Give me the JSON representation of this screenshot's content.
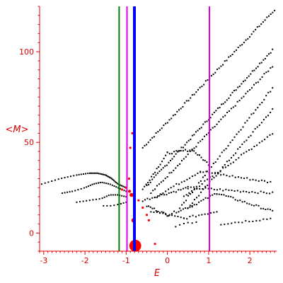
{
  "chart_data": {
    "type": "scatter",
    "title": "",
    "xlabel": "E",
    "ylabel": "<M>",
    "xlim": [
      -3.1,
      2.65
    ],
    "ylim": [
      -10,
      125
    ],
    "xticks": [
      -3,
      -2,
      -1,
      0,
      1,
      2
    ],
    "xtick_labels": [
      "-3",
      "-2",
      "-1",
      "0",
      "1",
      "2"
    ],
    "yticks": [
      0,
      50,
      100
    ],
    "ytick_labels": [
      "0",
      "50",
      "100"
    ],
    "grid": false,
    "colors": {
      "axes": "#e00000",
      "points": "#000000",
      "highlight": "#ff0000",
      "line_green": "#008000",
      "line_magenta": "#e000e0",
      "line_blue": "#0000ff"
    },
    "vertical_lines": [
      {
        "x": -1.17,
        "color": "#008000"
      },
      {
        "x": -0.98,
        "color": "#e000e0"
      },
      {
        "x": -0.8,
        "color": "#0000ff"
      },
      {
        "x": 1.02,
        "color": "#e000e0"
      }
    ],
    "series": [
      {
        "color": "#000000",
        "segments": [
          {
            "x0": -0.6,
            "y0": 47,
            "x1": 2.6,
            "y1": 123,
            "n": 70
          },
          {
            "x0": -0.5,
            "y0": 26,
            "x1": 2.55,
            "y1": 101,
            "n": 70
          },
          {
            "x0": -0.4,
            "y0": 22,
            "x1": 2.55,
            "y1": 92,
            "n": 60
          },
          {
            "x0": 0.3,
            "y0": 14,
            "x1": 2.55,
            "y1": 80,
            "n": 45
          },
          {
            "x0": 0.5,
            "y0": 14,
            "x1": 2.55,
            "y1": 68,
            "n": 40
          },
          {
            "x0": 0.4,
            "y0": 20,
            "x1": 2.55,
            "y1": 55,
            "n": 35
          },
          {
            "x0": -0.6,
            "y0": 24,
            "x1": 0.0,
            "y1": 44,
            "n": 15
          },
          {
            "x0": 0.0,
            "y0": 44,
            "x1": 0.6,
            "y1": 46,
            "n": 12
          },
          {
            "x0": 0.6,
            "y0": 46,
            "x1": 1.0,
            "y1": 38,
            "n": 10
          },
          {
            "x0": -0.3,
            "y0": 20,
            "x1": 0.8,
            "y1": 34,
            "n": 18
          },
          {
            "x0": 0.8,
            "y0": 34,
            "x1": 2.5,
            "y1": 28,
            "n": 25
          },
          {
            "x0": -0.6,
            "y0": 18,
            "x1": 0.5,
            "y1": 25,
            "n": 20
          },
          {
            "x0": 0.5,
            "y0": 25,
            "x1": 2.55,
            "y1": 22,
            "n": 30
          },
          {
            "x0": -0.5,
            "y0": 15,
            "x1": 0.0,
            "y1": 10,
            "n": 12
          },
          {
            "x0": 0.0,
            "y0": 10,
            "x1": 0.6,
            "y1": 15,
            "n": 12
          },
          {
            "x0": 0.6,
            "y0": 15,
            "x1": 1.2,
            "y1": 22,
            "n": 12
          },
          {
            "x0": 1.2,
            "y0": 22,
            "x1": 2.55,
            "y1": 12,
            "n": 25
          },
          {
            "x0": -0.4,
            "y0": 12,
            "x1": 0.4,
            "y1": 8,
            "n": 12
          },
          {
            "x0": 0.4,
            "y0": 8,
            "x1": 1.2,
            "y1": 12,
            "n": 12
          },
          {
            "x0": 1.3,
            "y0": 5,
            "x1": 2.5,
            "y1": 8,
            "n": 15
          },
          {
            "x0": 0.2,
            "y0": 4,
            "x1": 0.7,
            "y1": 6,
            "n": 6
          }
        ],
        "curves": [
          {
            "x": [
              -3.05,
              -2.6,
              -2.2,
              -1.9,
              -1.7,
              -1.5,
              -1.35,
              -1.2,
              -1.0
            ],
            "y": [
              27,
              30,
              32,
              33,
              33,
              32,
              30,
              27,
              25
            ],
            "n": 45
          },
          {
            "x": [
              -2.55,
              -2.3,
              -2.0,
              -1.8,
              -1.6,
              -1.4,
              -1.2,
              -1.0
            ],
            "y": [
              22,
              23,
              25,
              27,
              28,
              27,
              25,
              23
            ],
            "n": 30
          },
          {
            "x": [
              -2.2,
              -1.9,
              -1.6,
              -1.4,
              -1.2,
              -1.0
            ],
            "y": [
              17,
              18,
              19,
              21,
              21,
              20
            ],
            "n": 20
          },
          {
            "x": [
              -1.55,
              -1.35,
              -1.15,
              -1.0
            ],
            "y": [
              15,
              15,
              16,
              17
            ],
            "n": 8
          }
        ]
      },
      {
        "color": "#ff0000",
        "points": [
          {
            "x": -0.78,
            "y": -7,
            "r": 2.4
          },
          {
            "x": -0.82,
            "y": 7,
            "r": 0.9
          },
          {
            "x": -0.87,
            "y": 21,
            "r": 0.8
          },
          {
            "x": -0.92,
            "y": 23,
            "r": 0.6
          },
          {
            "x": -1.0,
            "y": 25,
            "r": 0.5
          },
          {
            "x": -1.1,
            "y": 24,
            "r": 0.4
          },
          {
            "x": -0.7,
            "y": 18,
            "r": 0.3
          },
          {
            "x": -0.6,
            "y": 14,
            "r": 0.3
          },
          {
            "x": -0.5,
            "y": 10,
            "r": 0.3
          },
          {
            "x": -0.45,
            "y": 7,
            "r": 0.3
          },
          {
            "x": -0.3,
            "y": -6,
            "r": 0.3
          },
          {
            "x": -0.85,
            "y": 55,
            "r": 0.3
          },
          {
            "x": -0.9,
            "y": 47,
            "r": 0.3
          },
          {
            "x": -0.93,
            "y": 30,
            "r": 0.3
          }
        ]
      }
    ]
  }
}
